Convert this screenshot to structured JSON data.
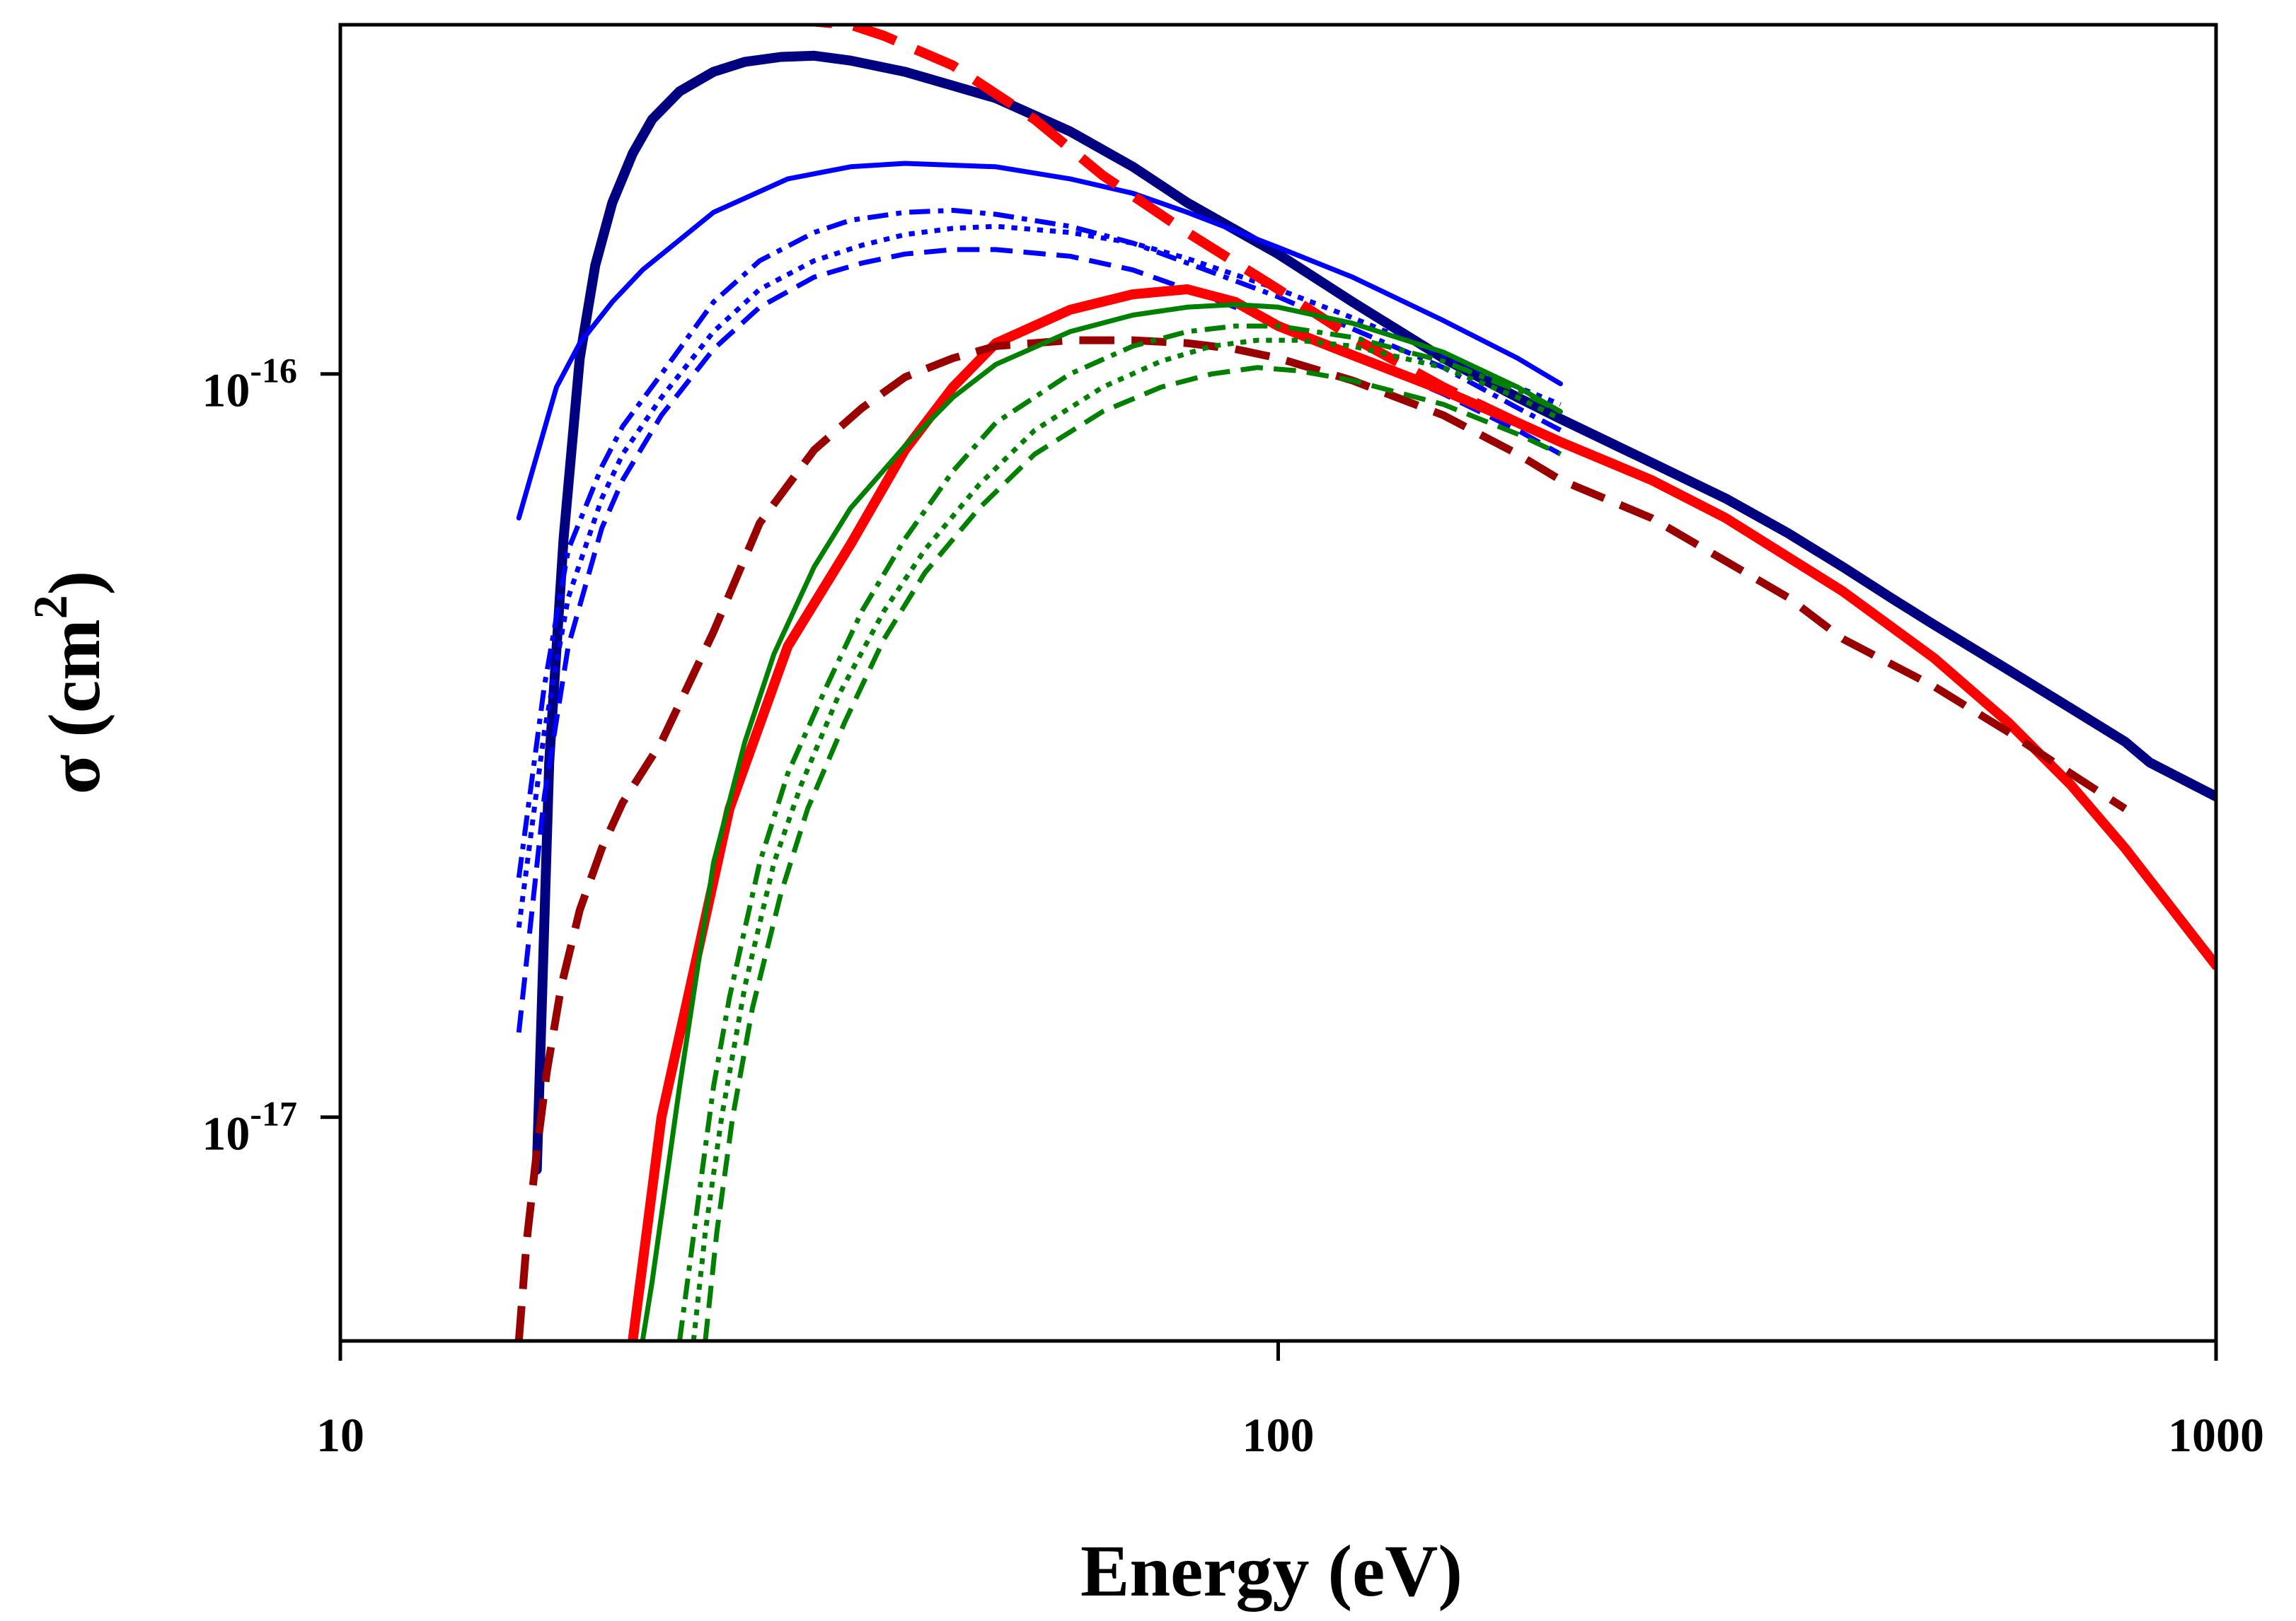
{
  "chart_data": {
    "type": "line",
    "title": "",
    "xlabel": "Energy (eV)",
    "ylabel_parts": {
      "symbol": "σ",
      "unit_open": "(cm",
      "exponent": "2",
      "unit_close": ")"
    },
    "xscale": "log",
    "yscale": "log",
    "xlim": [
      10,
      1000
    ],
    "ylim": [
      5e-18,
      2.95e-16
    ],
    "grid": false,
    "legend": "none",
    "xticks": [
      {
        "value": 10,
        "label": "10"
      },
      {
        "value": 100,
        "label": "100"
      },
      {
        "value": 1000,
        "label": "1000"
      }
    ],
    "yticks": [
      {
        "value": 1e-16,
        "base": "10",
        "exp": "-16"
      },
      {
        "value": 1e-17,
        "base": "10",
        "exp": "-17"
      }
    ],
    "series": [
      {
        "name": "navy-solid-thick",
        "color": "#000080",
        "dash": "solid",
        "weight": "thick",
        "x": [
          16.2,
          16.7,
          17.3,
          18.0,
          18.7,
          19.5,
          20.5,
          21.5,
          23.0,
          25.0,
          27.0,
          29.5,
          32.0,
          35.0,
          40.0,
          50.0,
          60.0,
          70.0,
          80.0,
          100.0,
          120.0,
          150.0,
          180.0,
          200.0,
          250.0,
          300.0,
          350.0,
          400.0,
          450.0,
          500.0,
          600.0,
          700.0,
          800.0,
          850.0,
          1000.0
        ],
        "y": [
          8.5e-18,
          3e-17,
          6e-17,
          1.05e-16,
          1.4e-16,
          1.7e-16,
          1.98e-16,
          2.2e-16,
          2.4e-16,
          2.55e-16,
          2.63e-16,
          2.67e-16,
          2.68e-16,
          2.64e-16,
          2.55e-16,
          2.35e-16,
          2.12e-16,
          1.9e-16,
          1.7e-16,
          1.45e-16,
          1.25e-16,
          1.05e-16,
          9.3e-17,
          8.7e-17,
          7.6e-17,
          6.8e-17,
          6.1e-17,
          5.5e-17,
          5e-17,
          4.6e-17,
          4e-17,
          3.55e-17,
          3.2e-17,
          3e-17,
          2.7e-17
        ]
      },
      {
        "name": "blue-solid",
        "color": "#0000FF",
        "dash": "solid",
        "weight": "thin",
        "x": [
          15.5,
          17.0,
          18.0,
          19.5,
          21.0,
          25.0,
          30.0,
          35.0,
          40.0,
          50.0,
          60.0,
          70.0,
          80.0,
          100.0,
          120.0,
          150.0,
          180.0,
          200.0
        ],
        "y": [
          6.4e-17,
          9.6e-17,
          1.1e-16,
          1.25e-16,
          1.38e-16,
          1.65e-16,
          1.83e-16,
          1.9e-16,
          1.92e-16,
          1.9e-16,
          1.83e-16,
          1.75e-16,
          1.65e-16,
          1.48e-16,
          1.35e-16,
          1.18e-16,
          1.05e-16,
          9.7e-17
        ]
      },
      {
        "name": "blue-dashdot",
        "color": "#0000FF",
        "dash": "dashdot",
        "weight": "thin",
        "x": [
          15.5,
          16.5,
          17.5,
          19.0,
          20.0,
          22.0,
          25.0,
          28.0,
          32.0,
          35.0,
          40.0,
          45.0,
          50.0,
          60.0,
          70.0,
          80.0,
          100.0,
          120.0,
          150.0,
          180.0,
          200.0
        ],
        "y": [
          2.1e-17,
          3.8e-17,
          5.8e-17,
          7.5e-17,
          8.5e-17,
          1e-16,
          1.25e-16,
          1.42e-16,
          1.55e-16,
          1.61e-16,
          1.65e-16,
          1.66e-16,
          1.64e-16,
          1.58e-16,
          1.5e-16,
          1.41e-16,
          1.27e-16,
          1.15e-16,
          1.02e-16,
          9e-17,
          8.4e-17
        ]
      },
      {
        "name": "blue-dotted",
        "color": "#0000FF",
        "dash": "dotted",
        "weight": "thin",
        "x": [
          15.5,
          16.5,
          17.5,
          19.0,
          20.0,
          22.0,
          25.0,
          28.0,
          32.0,
          36.0,
          40.0,
          45.0,
          50.0,
          60.0,
          70.0,
          80.0,
          100.0,
          120.0,
          150.0,
          180.0,
          200.0
        ],
        "y": [
          1.8e-17,
          3.3e-17,
          5e-17,
          6.8e-17,
          7.8e-17,
          9.3e-17,
          1.14e-16,
          1.3e-16,
          1.42e-16,
          1.49e-16,
          1.54e-16,
          1.57e-16,
          1.58e-16,
          1.55e-16,
          1.5e-16,
          1.43e-16,
          1.3e-16,
          1.19e-16,
          1.06e-16,
          9.6e-17,
          9.1e-17
        ]
      },
      {
        "name": "blue-dashed",
        "color": "#0000FF",
        "dash": "dashed",
        "weight": "thin",
        "x": [
          15.5,
          16.5,
          17.5,
          19.0,
          20.0,
          22.0,
          25.0,
          28.0,
          32.0,
          36.0,
          40.0,
          45.0,
          50.0,
          60.0,
          70.0,
          80.0,
          100.0,
          120.0,
          150.0,
          180.0,
          200.0
        ],
        "y": [
          1.3e-17,
          2.7e-17,
          4.3e-17,
          6.2e-17,
          7.2e-17,
          8.8e-17,
          1.08e-16,
          1.23e-16,
          1.35e-16,
          1.41e-16,
          1.45e-16,
          1.47e-16,
          1.47e-16,
          1.44e-16,
          1.38e-16,
          1.3e-16,
          1.17e-16,
          1.06e-16,
          9.4e-17,
          8.4e-17,
          7.8e-17
        ]
      },
      {
        "name": "red-solid-thick",
        "color": "#FF0000",
        "dash": "solid",
        "weight": "thick",
        "x": [
          20.5,
          22.0,
          26.0,
          30.0,
          35.0,
          40.0,
          45.0,
          50.0,
          60.0,
          70.0,
          80.0,
          90.0,
          100.0,
          120.0,
          150.0,
          180.0,
          200.0,
          250.0,
          300.0,
          400.0,
          500.0,
          600.0,
          700.0,
          800.0,
          1000.0
        ],
        "y": [
          5e-18,
          1e-17,
          2.6e-17,
          4.3e-17,
          5.9e-17,
          7.9e-17,
          9.6e-17,
          1.1e-16,
          1.22e-16,
          1.28e-16,
          1.3e-16,
          1.25e-16,
          1.16e-16,
          1.06e-16,
          9.5e-17,
          8.6e-17,
          8.1e-17,
          7.2e-17,
          6.4e-17,
          5.1e-17,
          4.15e-17,
          3.4e-17,
          2.8e-17,
          2.3e-17,
          1.6e-17
        ]
      },
      {
        "name": "red-dashed-thick",
        "color": "#FF0000",
        "dash": "dashed",
        "weight": "thick",
        "x": [
          30.0,
          35.0,
          38.0,
          45.0,
          55.0,
          65.0,
          80.0,
          100.0,
          120.0,
          150.0,
          180.0
        ],
        "y": [
          3e-16,
          2.95e-16,
          2.85e-16,
          2.6e-16,
          2.2e-16,
          1.85e-16,
          1.55e-16,
          1.3e-16,
          1.12e-16,
          9.6e-17,
          8.6e-17
        ]
      },
      {
        "name": "darkred-dashed",
        "color": "#990000",
        "dash": "dashed",
        "weight": "medium",
        "x": [
          15.5,
          15.8,
          16.2,
          16.6,
          17.2,
          18.0,
          19.0,
          20.0,
          22.0,
          25.0,
          28.0,
          32.0,
          36.0,
          40.0,
          45.0,
          50.0,
          60.0,
          70.0,
          80.0,
          90.0,
          100.0,
          120.0,
          150.0,
          180.0,
          200.0,
          250.0,
          300.0,
          350.0,
          400.0,
          500.0,
          600.0,
          700.0,
          800.0
        ],
        "y": [
          5e-18,
          6.8e-18,
          9e-18,
          1.15e-17,
          1.5e-17,
          1.9e-17,
          2.3e-17,
          2.65e-17,
          3.2e-17,
          4.5e-17,
          6.3e-17,
          7.9e-17,
          9e-17,
          9.9e-17,
          1.05e-16,
          1.09e-16,
          1.11e-16,
          1.11e-16,
          1.1e-16,
          1.08e-16,
          1.05e-16,
          9.8e-17,
          8.8e-17,
          7.8e-17,
          7.2e-17,
          6.4e-17,
          5.6e-17,
          5e-17,
          4.4e-17,
          3.8e-17,
          3.3e-17,
          2.9e-17,
          2.6e-17
        ]
      },
      {
        "name": "green-solid",
        "color": "#008000",
        "dash": "solid",
        "weight": "thin",
        "x": [
          21.0,
          21.5,
          23.0,
          25.0,
          27.0,
          29.0,
          32.0,
          35.0,
          40.0,
          45.0,
          50.0,
          60.0,
          70.0,
          80.0,
          90.0,
          100.0,
          120.0,
          150.0,
          180.0,
          200.0
        ],
        "y": [
          5e-18,
          6e-18,
          1.1e-17,
          2.2e-17,
          3.2e-17,
          4.2e-17,
          5.5e-17,
          6.6e-17,
          8e-17,
          9.3e-17,
          1.03e-16,
          1.14e-16,
          1.2e-16,
          1.23e-16,
          1.24e-16,
          1.23e-16,
          1.17e-16,
          1.07e-16,
          9.6e-17,
          8.9e-17
        ]
      },
      {
        "name": "green-dashdot",
        "color": "#008000",
        "dash": "dashdot",
        "weight": "thin",
        "x": [
          23.0,
          24.0,
          25.0,
          26.0,
          28.0,
          30.0,
          33.0,
          36.0,
          40.0,
          45.0,
          50.0,
          60.0,
          70.0,
          80.0,
          90.0,
          100.0,
          120.0,
          150.0,
          180.0,
          200.0
        ],
        "y": [
          5e-18,
          7.5e-18,
          1.1e-17,
          1.45e-17,
          2.2e-17,
          2.9e-17,
          3.8e-17,
          4.8e-17,
          6e-17,
          7.4e-17,
          8.6e-17,
          1e-16,
          1.09e-16,
          1.14e-16,
          1.16e-16,
          1.16e-16,
          1.12e-16,
          1.04e-16,
          9.5e-17,
          8.9e-17
        ]
      },
      {
        "name": "green-dotted",
        "color": "#008000",
        "dash": "dotted",
        "weight": "thin",
        "x": [
          23.8,
          24.5,
          25.5,
          27.0,
          29.0,
          31.0,
          34.0,
          38.0,
          42.0,
          48.0,
          55.0,
          65.0,
          75.0,
          85.0,
          95.0,
          105.0,
          120.0,
          150.0,
          180.0,
          200.0
        ],
        "y": [
          5e-18,
          7e-18,
          1e-17,
          1.5e-17,
          2.2e-17,
          2.8e-17,
          3.7e-17,
          4.8e-17,
          5.8e-17,
          7.1e-17,
          8.4e-17,
          9.6e-17,
          1.04e-16,
          1.09e-16,
          1.11e-16,
          1.11e-16,
          1.09e-16,
          1.02e-16,
          9.3e-17,
          8.7e-17
        ]
      },
      {
        "name": "green-dashed",
        "color": "#008000",
        "dash": "dashed",
        "weight": "thin",
        "x": [
          24.5,
          25.2,
          26.2,
          27.5,
          29.5,
          31.5,
          34.5,
          38.0,
          42.0,
          48.0,
          55.0,
          65.0,
          75.0,
          85.0,
          95.0,
          105.0,
          120.0,
          150.0,
          180.0,
          200.0
        ],
        "y": [
          5e-18,
          7e-18,
          1e-17,
          1.4e-17,
          2e-17,
          2.6e-17,
          3.4e-17,
          4.4e-17,
          5.4e-17,
          6.6e-17,
          7.8e-17,
          8.9e-17,
          9.6e-17,
          1e-16,
          1.02e-16,
          1.01e-16,
          9.8e-17,
          9.1e-17,
          8.3e-17,
          7.8e-17
        ]
      }
    ]
  }
}
